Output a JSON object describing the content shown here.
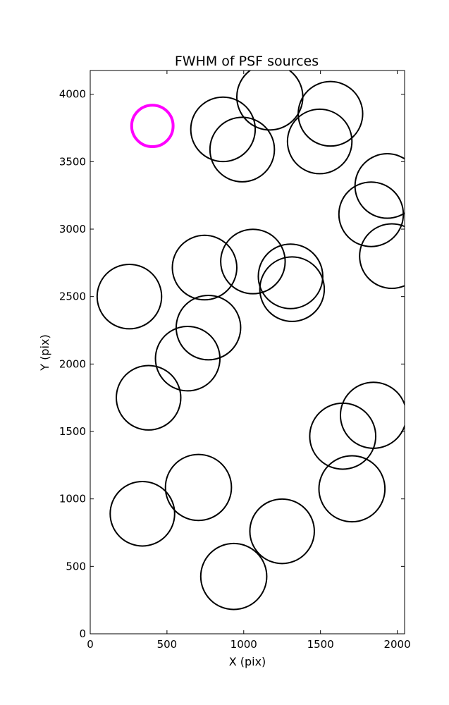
{
  "chart_data": {
    "type": "scatter",
    "title": "FWHM of PSF sources",
    "xlabel": "X (pix)",
    "ylabel": "Y (pix)",
    "xlim": [
      0,
      2048
    ],
    "ylim": [
      0,
      4176
    ],
    "x_ticks": [
      0,
      500,
      1000,
      1500,
      2000
    ],
    "y_ticks": [
      0,
      500,
      1000,
      1500,
      2000,
      2500,
      3000,
      3500,
      4000
    ],
    "grid": false,
    "series": [
      {
        "marker": "open-circle",
        "color": "#000000",
        "points": [
          {
            "x": 1170,
            "y": 3980,
            "r": 215
          },
          {
            "x": 1565,
            "y": 3855,
            "r": 210
          },
          {
            "x": 865,
            "y": 3740,
            "r": 210
          },
          {
            "x": 1495,
            "y": 3650,
            "r": 210
          },
          {
            "x": 990,
            "y": 3590,
            "r": 210
          },
          {
            "x": 1935,
            "y": 3320,
            "r": 210
          },
          {
            "x": 1830,
            "y": 3110,
            "r": 210
          },
          {
            "x": 1965,
            "y": 2800,
            "r": 210
          },
          {
            "x": 1060,
            "y": 2760,
            "r": 210
          },
          {
            "x": 745,
            "y": 2715,
            "r": 210
          },
          {
            "x": 1305,
            "y": 2650,
            "r": 210
          },
          {
            "x": 1315,
            "y": 2555,
            "r": 210
          },
          {
            "x": 255,
            "y": 2500,
            "r": 210
          },
          {
            "x": 770,
            "y": 2270,
            "r": 210
          },
          {
            "x": 635,
            "y": 2040,
            "r": 210
          },
          {
            "x": 380,
            "y": 1750,
            "r": 210
          },
          {
            "x": 1845,
            "y": 1620,
            "r": 215
          },
          {
            "x": 1645,
            "y": 1465,
            "r": 215
          },
          {
            "x": 705,
            "y": 1085,
            "r": 215
          },
          {
            "x": 1705,
            "y": 1075,
            "r": 215
          },
          {
            "x": 340,
            "y": 890,
            "r": 210
          },
          {
            "x": 1250,
            "y": 760,
            "r": 210
          },
          {
            "x": 935,
            "y": 425,
            "r": 215
          }
        ]
      },
      {
        "marker": "open-circle",
        "color": "#ff00ff",
        "points": [
          {
            "x": 405,
            "y": 3765,
            "r": 135
          }
        ]
      }
    ]
  }
}
